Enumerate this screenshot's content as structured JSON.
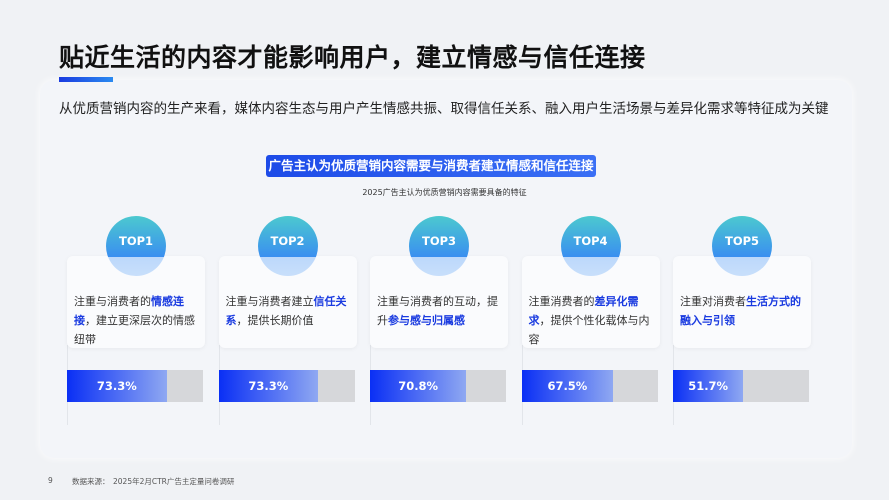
{
  "title": "贴近生活的内容才能影响用户，建立情感与信任连接",
  "subtitle": "从优质营销内容的生产来看，媒体内容生态与用户产生情感共振、取得信任关系、融入用户生活场景与差异化需求等特征成为关键",
  "banner": "广告主认为优质营销内容需要与消费者建立情感和信任连接",
  "caption": "2025广告主认为优质营销内容需要具备的特征",
  "items": [
    {
      "rank": "TOP1",
      "pre": "注重与消费者的",
      "hl": "情感连接",
      "post": "，建立更深层次的情感纽带",
      "value": 73.3,
      "label": "73.3%"
    },
    {
      "rank": "TOP2",
      "pre": "注重与消费者建立",
      "hl": "信任关系",
      "post": "，提供长期价值",
      "value": 73.3,
      "label": "73.3%"
    },
    {
      "rank": "TOP3",
      "pre": "注重与消费者的互动，提升",
      "hl": "参与感与归属感",
      "post": "",
      "value": 70.8,
      "label": "70.8%"
    },
    {
      "rank": "TOP4",
      "pre": "注重消费者的",
      "hl": "差异化需求",
      "post": "，提供个性化载体与内容",
      "value": 67.5,
      "label": "67.5%"
    },
    {
      "rank": "TOP5",
      "pre": "注重对消费者",
      "hl": "生活方式的融入与引领",
      "post": "",
      "value": 51.7,
      "label": "51.7%"
    }
  ],
  "footer": {
    "page": "9",
    "source_label": "数据来源：",
    "source": "2025年2月CTR广告主定量问卷调研"
  },
  "colors": {
    "accent": "#1a3be0",
    "bar_bg": "#d6d7da"
  }
}
